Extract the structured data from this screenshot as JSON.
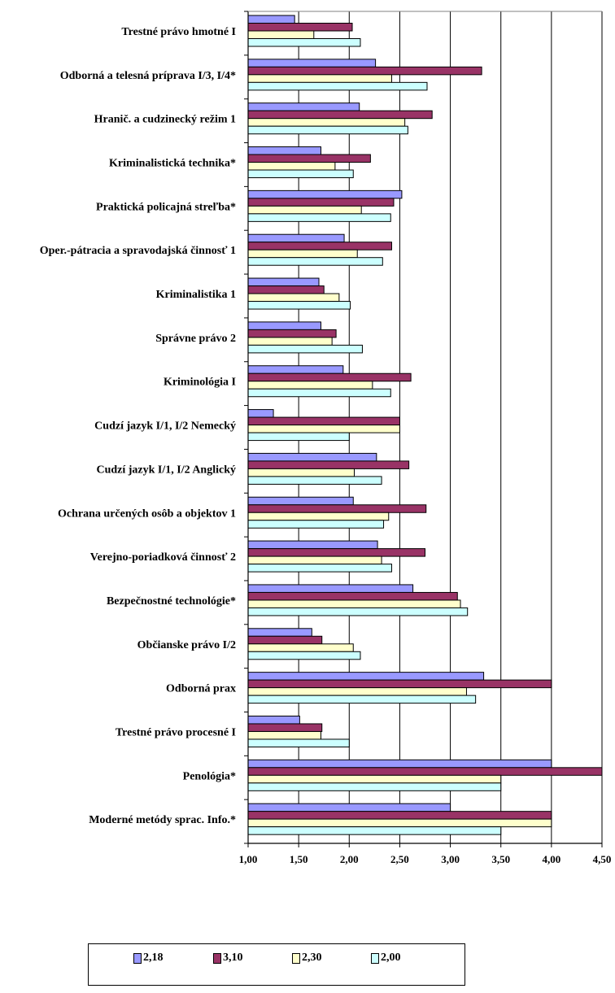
{
  "chart_data": {
    "type": "bar",
    "orientation": "horizontal",
    "categories": [
      "Trestné právo hmotné I",
      "Odborná a telesná príprava I/3, I/4*",
      "Hranič. a cudzinecký režim 1",
      "Kriminalistická technika*",
      "Praktická policajná streľba*",
      "Oper.-pátracia a spravodajská činnosť 1",
      "Kriminalistika 1",
      "Správne právo 2",
      "Kriminológia I",
      "Cudzí jazyk I/1, I/2 Nemecký",
      "Cudzí jazyk I/1, I/2 Anglický",
      "Ochrana určených osôb a objektov 1",
      "Verejno-poriadková činnosť 2",
      "Bezpečnostné technológie*",
      "Občianske právo I/2",
      "Odborná prax",
      "Trestné právo procesné I",
      "Penológia*",
      "Moderné metódy sprac. Info.*"
    ],
    "series": [
      {
        "name": "2,18",
        "color": "#9999ff",
        "values": [
          1.46,
          2.26,
          2.1,
          1.72,
          2.52,
          1.95,
          1.7,
          1.72,
          1.94,
          1.25,
          2.27,
          2.04,
          2.28,
          2.63,
          1.63,
          3.33,
          1.51,
          4.0,
          3.0
        ]
      },
      {
        "name": "3,10",
        "color": "#993366",
        "values": [
          2.03,
          3.31,
          2.82,
          2.21,
          2.44,
          2.42,
          1.75,
          1.87,
          2.61,
          2.5,
          2.59,
          2.76,
          2.75,
          3.07,
          1.73,
          4.0,
          1.73,
          4.5,
          4.0
        ]
      },
      {
        "name": "2,30",
        "color": "#ffffcc",
        "values": [
          1.65,
          2.42,
          2.55,
          1.86,
          2.12,
          2.08,
          1.9,
          1.83,
          2.23,
          2.5,
          2.05,
          2.39,
          2.32,
          3.1,
          2.04,
          3.16,
          1.72,
          3.5,
          4.0
        ]
      },
      {
        "name": "2,00",
        "color": "#ccffff",
        "values": [
          2.11,
          2.77,
          2.58,
          2.04,
          2.41,
          2.33,
          2.01,
          2.13,
          2.41,
          2.0,
          2.32,
          2.34,
          2.42,
          3.17,
          2.11,
          3.25,
          2.0,
          3.5,
          3.5
        ]
      }
    ],
    "xlim": [
      1.0,
      4.5
    ],
    "xticks": [
      "1,00",
      "1,50",
      "2,00",
      "2,50",
      "3,00",
      "3,50",
      "4,00",
      "4,50"
    ],
    "grid": "vertical",
    "legend_position": "bottom"
  }
}
